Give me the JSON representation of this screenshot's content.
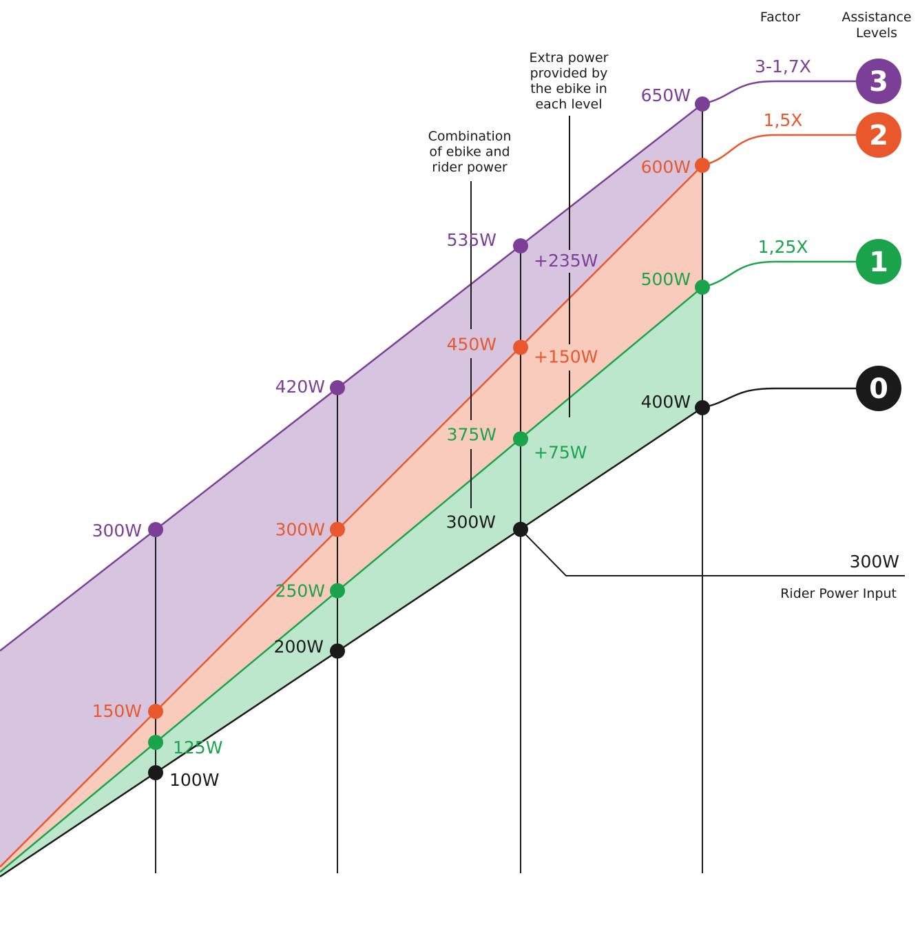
{
  "chart_data": {
    "type": "area",
    "title": "",
    "xlabel": "",
    "ylabel": "",
    "rider_input": [
      100,
      200,
      300,
      400
    ],
    "series": [
      {
        "level": "0",
        "factor": "",
        "color": "#1a1a1a",
        "fill": "",
        "values": [
          100,
          200,
          300,
          400
        ],
        "labels": [
          "100W",
          "200W",
          "300W",
          "400W"
        ]
      },
      {
        "level": "1",
        "factor": "1,25X",
        "color": "#1aa34a",
        "fill": "#bce7cd",
        "values": [
          125,
          250,
          375,
          500
        ],
        "labels": [
          "125W",
          "250W",
          "375W",
          "500W"
        ]
      },
      {
        "level": "2",
        "factor": "1,5X",
        "color": "#e8582c",
        "fill": "#f8cbbd",
        "values": [
          150,
          300,
          450,
          600
        ],
        "labels": [
          "150W",
          "300W",
          "450W",
          "600W"
        ]
      },
      {
        "level": "3",
        "factor": "3-1,7X",
        "color": "#7b3f98",
        "fill": "#d7c4df",
        "values": [
          300,
          420,
          535,
          650
        ],
        "labels": [
          "300W",
          "420W",
          "535W",
          "650W"
        ]
      }
    ],
    "extra_power": [
      "+75W",
      "+150W",
      "+235W"
    ],
    "annotations": {
      "combination": [
        "Combination",
        "of ebike and",
        "rider power"
      ],
      "extra": [
        "Extra power",
        "provided by",
        "the ebike in",
        "each level"
      ],
      "rider_value": "300W",
      "rider_label": "Rider Power Input"
    },
    "headers": {
      "factor": "Factor",
      "assistance": [
        "Assistance",
        "Levels"
      ]
    }
  }
}
